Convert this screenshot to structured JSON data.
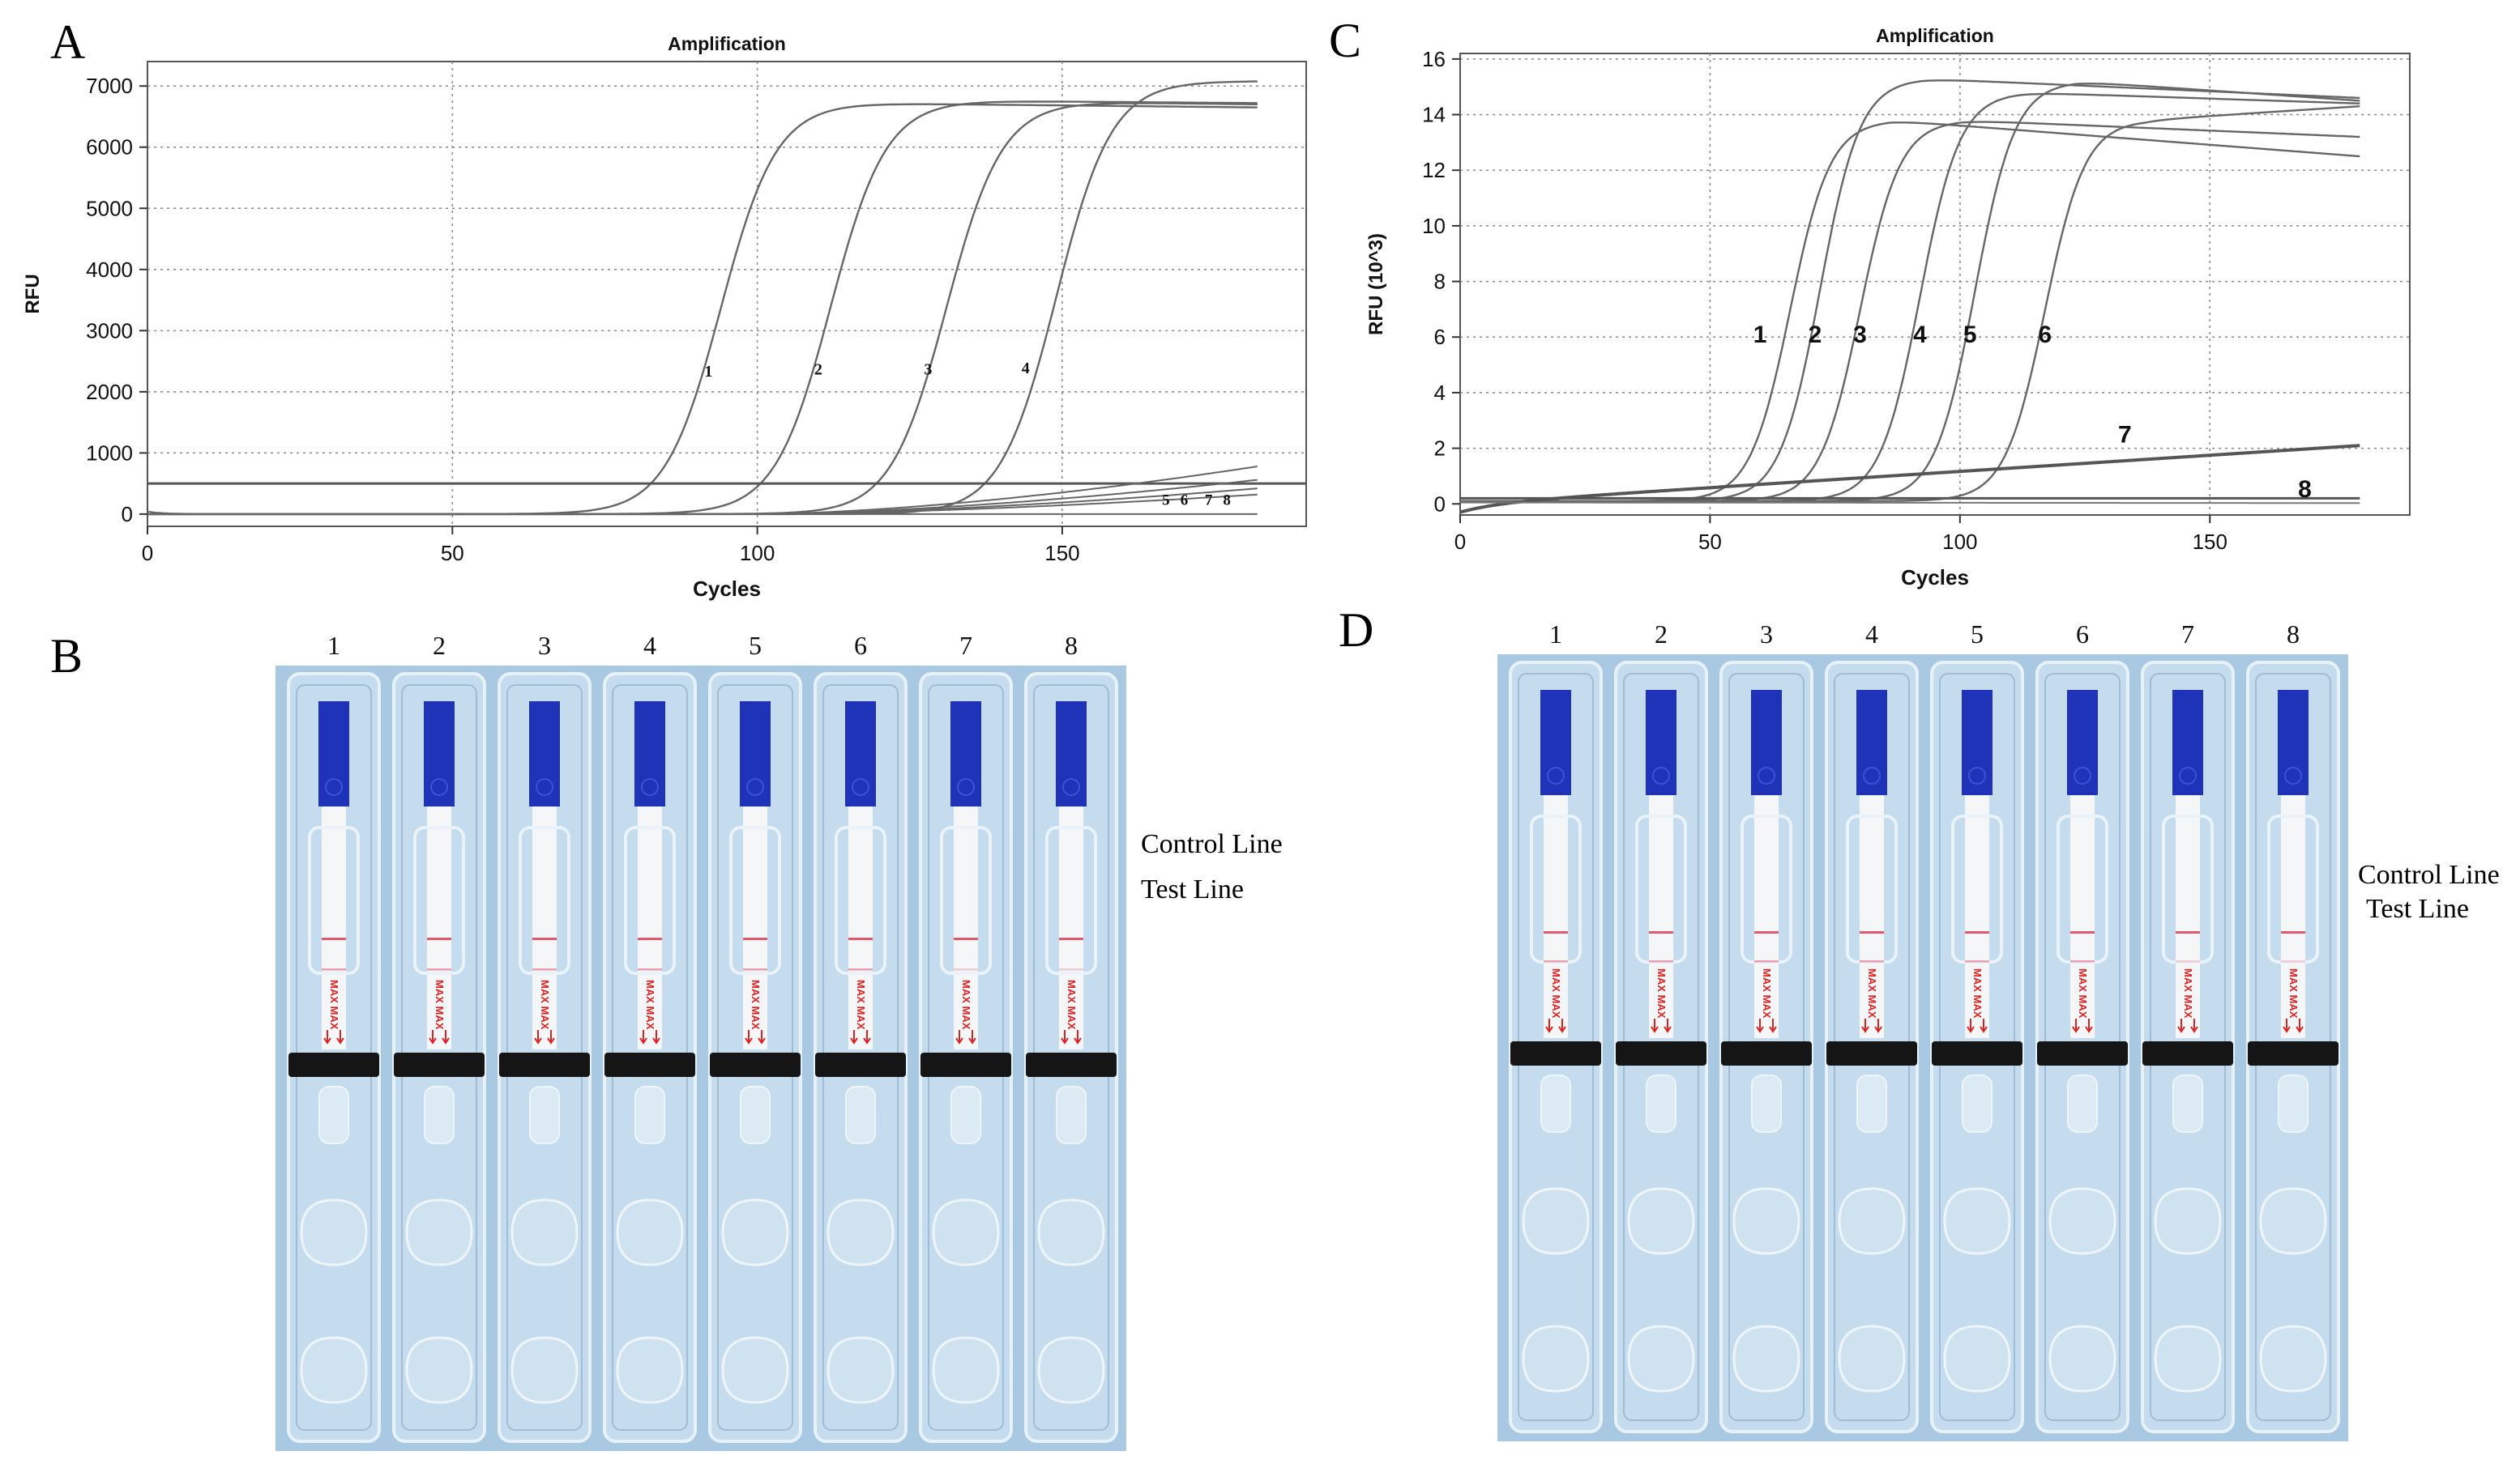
{
  "panels": {
    "A": "A",
    "B": "B",
    "C": "C",
    "D": "D"
  },
  "chart_data": [
    {
      "id": "chartA",
      "type": "line",
      "title": "Amplification",
      "xlabel": "Cycles",
      "ylabel": "RFU",
      "xlim": [
        0,
        190
      ],
      "ylim": [
        -200,
        7400
      ],
      "xticks": [
        0,
        50,
        100,
        150
      ],
      "yticks": [
        0,
        1000,
        2000,
        3000,
        4000,
        5000,
        6000,
        7000
      ],
      "grid": true,
      "threshold": 500,
      "sigmoids": [
        {
          "name": "1",
          "mid": 94,
          "k": 0.22,
          "plateau": 6720,
          "end": 6650,
          "label_x": 92,
          "label_y": 2250
        },
        {
          "name": "2",
          "mid": 112,
          "k": 0.22,
          "plateau": 6760,
          "end": 6720,
          "label_x": 110,
          "label_y": 2280
        },
        {
          "name": "3",
          "mid": 131,
          "k": 0.22,
          "plateau": 6740,
          "end": 6700,
          "label_x": 128,
          "label_y": 2280
        },
        {
          "name": "4",
          "mid": 149,
          "k": 0.22,
          "plateau": 7080,
          "end": 7080,
          "label_x": 144,
          "label_y": 2300
        }
      ],
      "flat": [
        {
          "name": "5",
          "end": 320
        },
        {
          "name": "6",
          "end": 420
        },
        {
          "name": "7",
          "end": 560
        },
        {
          "name": "8",
          "end": 780
        }
      ],
      "flat_labels": [
        {
          "text": "5",
          "x": 167,
          "y": 260
        },
        {
          "text": "6",
          "x": 170,
          "y": 260
        },
        {
          "text": "7",
          "x": 174,
          "y": 260
        },
        {
          "text": "8",
          "x": 177,
          "y": 260
        }
      ]
    },
    {
      "id": "chartC",
      "type": "line",
      "title": "Amplification",
      "xlabel": "Cycles",
      "ylabel": "RFU (10^3)",
      "xlim": [
        0,
        190
      ],
      "ylim": [
        -0.4,
        16.2
      ],
      "xticks": [
        0,
        50,
        100,
        150
      ],
      "yticks": [
        0,
        2,
        4,
        6,
        8,
        10,
        12,
        14,
        16
      ],
      "grid": true,
      "sigmoids": [
        {
          "name": "1",
          "mid": 66,
          "k": 0.25,
          "plateau": 13.8,
          "end": 12.5,
          "label_x": 60,
          "label_y": 5.8
        },
        {
          "name": "2",
          "mid": 72,
          "k": 0.25,
          "plateau": 15.3,
          "end": 14.6,
          "label_x": 71,
          "label_y": 5.8
        },
        {
          "name": "3",
          "mid": 80,
          "k": 0.25,
          "plateau": 13.8,
          "end": 13.2,
          "label_x": 80,
          "label_y": 5.8
        },
        {
          "name": "4",
          "mid": 92,
          "k": 0.25,
          "plateau": 14.8,
          "end": 14.4,
          "label_x": 92,
          "label_y": 5.8
        },
        {
          "name": "5",
          "mid": 103,
          "k": 0.25,
          "plateau": 15.2,
          "end": 14.5,
          "label_x": 102,
          "label_y": 5.8
        },
        {
          "name": "6",
          "mid": 117,
          "k": 0.25,
          "plateau": 13.8,
          "end": 14.3,
          "label_x": 117,
          "label_y": 5.8
        }
      ],
      "linear7": {
        "name": "7",
        "start": 0.0,
        "end": 2.1,
        "label_x": 133,
        "label_y": 2.2
      },
      "flat8": {
        "name": "8",
        "value": 0.2,
        "label_x": 169,
        "label_y": 0.65
      }
    }
  ],
  "stripB": {
    "lanes": [
      "1",
      "2",
      "3",
      "4",
      "5",
      "6",
      "7",
      "8"
    ],
    "labels": [
      "Control Line",
      "Test Line"
    ],
    "strip_text": "MAX"
  },
  "stripD": {
    "lanes": [
      "1",
      "2",
      "3",
      "4",
      "5",
      "6",
      "7",
      "8"
    ],
    "labels": [
      "Control Line",
      "Test Line"
    ],
    "strip_text": "MAX"
  }
}
